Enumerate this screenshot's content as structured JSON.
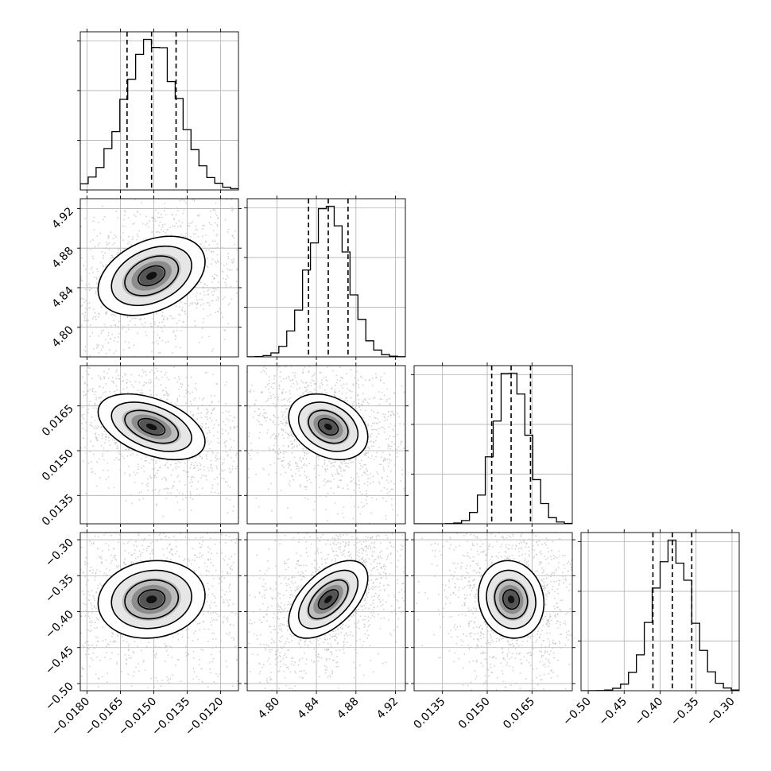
{
  "chart_data": {
    "type": "corner",
    "params": [
      {
        "mean": -0.0151,
        "sd": 0.0012,
        "range": [
          -0.0183,
          -0.0112
        ],
        "ticks": [
          -0.018,
          -0.0165,
          -0.015,
          -0.0135,
          -0.012
        ],
        "tick_labels": [
          "−0.0180",
          "−0.0165",
          "−0.0150",
          "−0.0135",
          "−0.0120"
        ],
        "quantiles": [
          -0.0162,
          -0.0151,
          -0.014
        ]
      },
      {
        "mean": 4.852,
        "sd": 0.02,
        "range": [
          4.77,
          4.93
        ],
        "ticks": [
          4.8,
          4.84,
          4.88,
          4.92
        ],
        "tick_labels": [
          "4.80",
          "4.84",
          "4.88",
          "4.92"
        ],
        "quantiles": [
          4.832,
          4.852,
          4.872
        ]
      },
      {
        "mean": 0.0158,
        "sd": 0.00055,
        "range": [
          0.01255,
          0.01785
        ],
        "ticks": [
          0.0135,
          0.015,
          0.0165
        ],
        "tick_labels": [
          "0.0135",
          "0.0150",
          "0.0165"
        ],
        "quantiles": [
          0.01515,
          0.0158,
          0.01645
        ]
      },
      {
        "mean": -0.383,
        "sd": 0.027,
        "range": [
          -0.51,
          -0.29
        ],
        "ticks": [
          -0.5,
          -0.45,
          -0.4,
          -0.35,
          -0.3
        ],
        "tick_labels": [
          "−0.50",
          "−0.45",
          "−0.40",
          "−0.35",
          "−0.30"
        ],
        "quantiles": [
          -0.41,
          -0.383,
          -0.356
        ]
      }
    ],
    "correlations": [
      {
        "pair": [
          0,
          1
        ],
        "rho": 0.35
      },
      {
        "pair": [
          0,
          2
        ],
        "rho": -0.45
      },
      {
        "pair": [
          1,
          2
        ],
        "rho": -0.3
      },
      {
        "pair": [
          0,
          3
        ],
        "rho": 0.1
      },
      {
        "pair": [
          1,
          3
        ],
        "rho": 0.55
      },
      {
        "pair": [
          2,
          3
        ],
        "rho": -0.1
      }
    ],
    "histogram": {
      "bins": 20,
      "quantile_levels": [
        0.16,
        0.5,
        0.84
      ]
    },
    "contour_levels_sigma": [
      0.5,
      1.0,
      1.5,
      2.0
    ],
    "grid": true,
    "colors": {
      "points": "#bdbdbd",
      "density": "#000000",
      "lines": "#000000"
    }
  }
}
